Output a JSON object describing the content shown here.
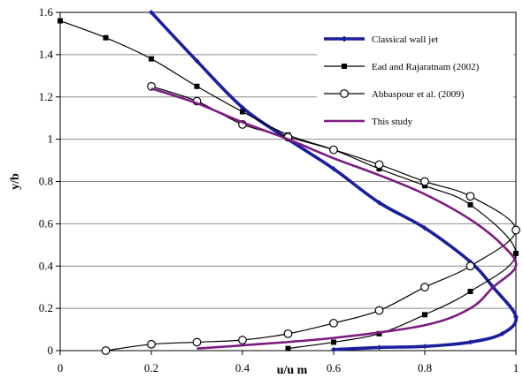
{
  "chart_data": {
    "type": "line",
    "xlabel": "u/u m",
    "ylabel": "y/b",
    "xlim": [
      0,
      1
    ],
    "ylim": [
      0,
      1.6
    ],
    "x_ticks": [
      "0",
      "0.2",
      "0.4",
      "0.6",
      "0.8",
      "1"
    ],
    "y_ticks": [
      "0",
      "0.2",
      "0.4",
      "0.6",
      "0.8",
      "1",
      "1.2",
      "1.4",
      "1.6"
    ],
    "grid": "horizontal",
    "legend_position": "top-right",
    "series": [
      {
        "name": "Classical wall jet",
        "color": "#1a1f9c",
        "marker": "diamond",
        "points": [
          [
            0.2,
            1.6
          ],
          [
            0.3,
            1.37
          ],
          [
            0.4,
            1.15
          ],
          [
            0.5,
            1.0
          ],
          [
            0.6,
            0.86
          ],
          [
            0.7,
            0.7
          ],
          [
            0.8,
            0.58
          ],
          [
            0.9,
            0.42
          ],
          [
            0.95,
            0.3
          ],
          [
            1.0,
            0.16
          ],
          [
            0.97,
            0.08
          ],
          [
            0.9,
            0.04
          ],
          [
            0.8,
            0.02
          ],
          [
            0.7,
            0.015
          ],
          [
            0.6,
            0.005
          ]
        ]
      },
      {
        "name": "Ead and Rajaratnam (2002)",
        "color": "#000000",
        "marker": "square",
        "points": [
          [
            0.0,
            1.56
          ],
          [
            0.1,
            1.48
          ],
          [
            0.2,
            1.38
          ],
          [
            0.3,
            1.25
          ],
          [
            0.4,
            1.13
          ],
          [
            0.5,
            1.02
          ],
          [
            0.6,
            0.95
          ],
          [
            0.7,
            0.86
          ],
          [
            0.8,
            0.78
          ],
          [
            0.9,
            0.69
          ],
          [
            1.0,
            0.46
          ],
          [
            0.9,
            0.28
          ],
          [
            0.8,
            0.17
          ],
          [
            0.7,
            0.08
          ],
          [
            0.6,
            0.04
          ],
          [
            0.5,
            0.01
          ]
        ]
      },
      {
        "name": "Abbaspour et al. (2009)",
        "color": "#000000",
        "marker": "circle",
        "points": [
          [
            0.2,
            1.25
          ],
          [
            0.3,
            1.18
          ],
          [
            0.4,
            1.07
          ],
          [
            0.5,
            1.01
          ],
          [
            0.6,
            0.95
          ],
          [
            0.7,
            0.88
          ],
          [
            0.8,
            0.8
          ],
          [
            0.9,
            0.73
          ],
          [
            1.0,
            0.57
          ],
          [
            0.9,
            0.4
          ],
          [
            0.8,
            0.3
          ],
          [
            0.7,
            0.19
          ],
          [
            0.6,
            0.13
          ],
          [
            0.5,
            0.08
          ],
          [
            0.4,
            0.05
          ],
          [
            0.3,
            0.04
          ],
          [
            0.2,
            0.03
          ],
          [
            0.1,
            0.0
          ]
        ]
      },
      {
        "name": "This study",
        "color": "#7d1a80",
        "marker": "none",
        "points": [
          [
            0.2,
            1.24
          ],
          [
            0.3,
            1.17
          ],
          [
            0.4,
            1.08
          ],
          [
            0.5,
            1.0
          ],
          [
            0.6,
            0.91
          ],
          [
            0.7,
            0.83
          ],
          [
            0.8,
            0.74
          ],
          [
            0.9,
            0.62
          ],
          [
            0.97,
            0.5
          ],
          [
            1.0,
            0.4
          ],
          [
            0.95,
            0.3
          ],
          [
            0.9,
            0.2
          ],
          [
            0.8,
            0.12
          ],
          [
            0.6,
            0.06
          ],
          [
            0.4,
            0.025
          ],
          [
            0.3,
            0.01
          ]
        ]
      }
    ]
  }
}
